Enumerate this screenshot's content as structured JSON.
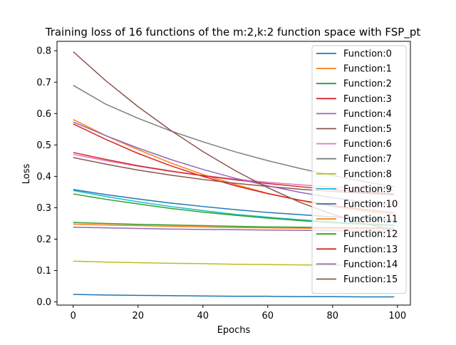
{
  "chart_data": {
    "type": "line",
    "title": "Training loss of 16 functions of the m:2,k:2 function space with FSP_pt",
    "xlabel": "Epochs",
    "ylabel": "Loss",
    "xlim": [
      -5,
      104
    ],
    "ylim": [
      -0.01,
      0.83
    ],
    "x_ticks": [
      0,
      20,
      40,
      60,
      80,
      100
    ],
    "x_tick_labels": [
      "0",
      "20",
      "40",
      "60",
      "80",
      "100"
    ],
    "y_ticks": [
      0.0,
      0.1,
      0.2,
      0.3,
      0.4,
      0.5,
      0.6,
      0.7,
      0.8
    ],
    "y_tick_labels": [
      "0.0",
      "0.1",
      "0.2",
      "0.3",
      "0.4",
      "0.5",
      "0.6",
      "0.7",
      "0.8"
    ],
    "grid": false,
    "legend_position": "upper-right",
    "x_points": [
      0,
      10,
      20,
      30,
      40,
      50,
      60,
      70,
      80,
      90,
      99
    ],
    "series": [
      {
        "name": "Function:0",
        "color": "#1f77b4",
        "values": [
          0.024,
          0.022,
          0.021,
          0.02,
          0.019,
          0.018,
          0.018,
          0.017,
          0.017,
          0.016,
          0.016
        ]
      },
      {
        "name": "Function:1",
        "color": "#ff7f0e",
        "values": [
          0.581,
          0.53,
          0.485,
          0.443,
          0.406,
          0.374,
          0.346,
          0.323,
          0.304,
          0.289,
          0.278
        ]
      },
      {
        "name": "Function:2",
        "color": "#2ca02c",
        "values": [
          0.253,
          0.25,
          0.247,
          0.245,
          0.243,
          0.241,
          0.239,
          0.238,
          0.237,
          0.236,
          0.235
        ]
      },
      {
        "name": "Function:3",
        "color": "#d62728",
        "values": [
          0.567,
          0.518,
          0.473,
          0.434,
          0.4,
          0.37,
          0.345,
          0.324,
          0.307,
          0.294,
          0.284
        ]
      },
      {
        "name": "Function:4",
        "color": "#9467bd",
        "values": [
          0.238,
          0.236,
          0.234,
          0.232,
          0.231,
          0.23,
          0.229,
          0.228,
          0.227,
          0.226,
          0.226
        ]
      },
      {
        "name": "Function:5",
        "color": "#8c564b",
        "values": [
          0.46,
          0.439,
          0.42,
          0.404,
          0.39,
          0.378,
          0.368,
          0.359,
          0.352,
          0.346,
          0.341
        ]
      },
      {
        "name": "Function:6",
        "color": "#e377c2",
        "values": [
          0.47,
          0.45,
          0.432,
          0.416,
          0.403,
          0.391,
          0.381,
          0.373,
          0.366,
          0.36,
          0.355
        ]
      },
      {
        "name": "Function:7",
        "color": "#7f7f7f",
        "values": [
          0.69,
          0.63,
          0.585,
          0.545,
          0.51,
          0.478,
          0.45,
          0.425,
          0.403,
          0.383,
          0.366
        ]
      },
      {
        "name": "Function:8",
        "color": "#bcbd22",
        "values": [
          0.13,
          0.127,
          0.125,
          0.123,
          0.122,
          0.12,
          0.119,
          0.118,
          0.117,
          0.116,
          0.115
        ]
      },
      {
        "name": "Function:9",
        "color": "#17becf",
        "values": [
          0.355,
          0.336,
          0.319,
          0.304,
          0.291,
          0.279,
          0.27,
          0.262,
          0.255,
          0.249,
          0.245
        ]
      },
      {
        "name": "Function:10",
        "color": "#1f77b4",
        "values": [
          0.358,
          0.342,
          0.328,
          0.315,
          0.304,
          0.294,
          0.285,
          0.278,
          0.271,
          0.265,
          0.261
        ]
      },
      {
        "name": "Function:11",
        "color": "#ff7f0e",
        "values": [
          0.248,
          0.245,
          0.243,
          0.241,
          0.239,
          0.237,
          0.236,
          0.235,
          0.234,
          0.233,
          0.232
        ]
      },
      {
        "name": "Function:12",
        "color": "#2ca02c",
        "values": [
          0.344,
          0.327,
          0.312,
          0.298,
          0.286,
          0.276,
          0.267,
          0.259,
          0.252,
          0.247,
          0.243
        ]
      },
      {
        "name": "Function:13",
        "color": "#d62728",
        "values": [
          0.476,
          0.454,
          0.434,
          0.417,
          0.402,
          0.389,
          0.377,
          0.367,
          0.358,
          0.35,
          0.344
        ]
      },
      {
        "name": "Function:14",
        "color": "#9467bd",
        "values": [
          0.573,
          0.53,
          0.49,
          0.454,
          0.422,
          0.394,
          0.37,
          0.349,
          0.332,
          0.318,
          0.308
        ]
      },
      {
        "name": "Function:15",
        "color": "#8c564b",
        "values": [
          0.797,
          0.705,
          0.622,
          0.547,
          0.479,
          0.418,
          0.364,
          0.317,
          0.279,
          0.249,
          0.23
        ]
      }
    ]
  }
}
